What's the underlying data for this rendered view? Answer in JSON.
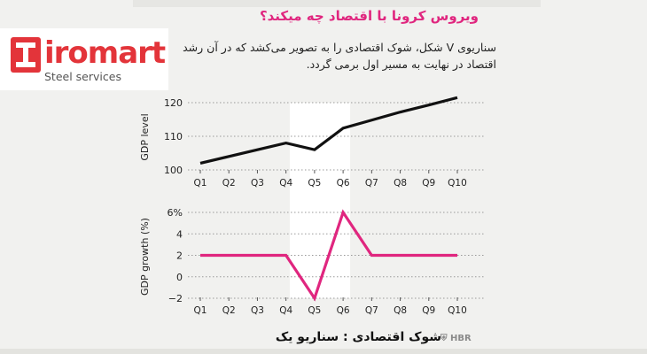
{
  "headline": "ویروس کرونا با اقتصاد چه میکند؟",
  "subtext": "سناریوی V شکل، شوک اقتصادی را به تصویر می‌کشد که در آن رشد اقتصاد در نهایت به مسیر اول برمی گردد.",
  "logo": {
    "name": "iromart",
    "tagline": "Steel services"
  },
  "footer_title": "شوک اقتصادی : سناریو یک",
  "source": "HBR",
  "colors": {
    "level": "#111111",
    "growth": "#e0267f",
    "shade": "#ffffff",
    "grid": "#9a9a9a"
  },
  "chart_data": [
    {
      "type": "line",
      "title": "",
      "xlabel": "",
      "ylabel": "GDP level",
      "categories": [
        "Q1",
        "Q2",
        "Q3",
        "Q4",
        "Q5",
        "Q6",
        "Q7",
        "Q8",
        "Q9",
        "Q10"
      ],
      "values": [
        102,
        104,
        106,
        108,
        106,
        112.4,
        114.8,
        117.2,
        119.3,
        121.5
      ],
      "ylim": [
        100,
        120
      ],
      "yticks": [
        "100",
        "110",
        "120"
      ],
      "grid": "horizontal dotted",
      "shaded_range": [
        "Q5",
        "Q6"
      ]
    },
    {
      "type": "line",
      "title": "",
      "xlabel": "",
      "ylabel": "GDP growth (%)",
      "categories": [
        "Q1",
        "Q2",
        "Q3",
        "Q4",
        "Q5",
        "Q6",
        "Q7",
        "Q8",
        "Q9",
        "Q10"
      ],
      "values": [
        2,
        2,
        2,
        2,
        -2,
        6,
        2,
        2,
        2,
        2
      ],
      "ylim": [
        -2,
        6
      ],
      "yticks": [
        "−2",
        "0",
        "2",
        "4",
        "6%"
      ],
      "grid": "horizontal dotted",
      "shaded_range": [
        "Q5",
        "Q6"
      ]
    }
  ]
}
